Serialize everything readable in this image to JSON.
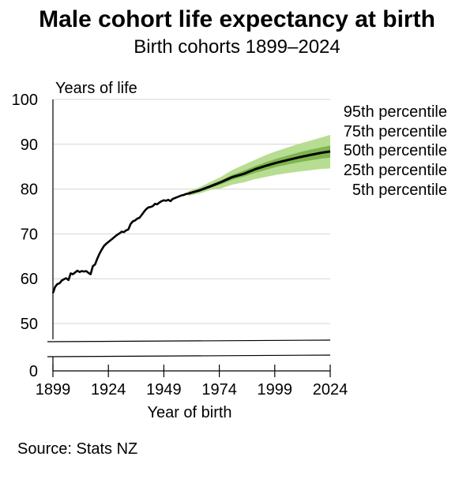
{
  "title": "Male cohort life expectancy at birth",
  "subtitle": "Birth cohorts 1899–2024",
  "source": "Source: Stats NZ",
  "chart_data": {
    "type": "area",
    "ylabel": "Years of life",
    "xlabel": "Year of birth",
    "ylim": [
      0,
      100
    ],
    "y_axis_break": [
      0,
      45
    ],
    "xlim": [
      1899,
      2024
    ],
    "xticks": [
      "1899",
      "1924",
      "1949",
      "1974",
      "1999",
      "2024"
    ],
    "yticks": [
      "100",
      "90",
      "80",
      "70",
      "60",
      "50",
      "0"
    ],
    "grid": "horizontal",
    "legend_position": "right",
    "colors": {
      "band_outer": "#b7dd92",
      "band_inner": "#7fb54f",
      "median": "#000000"
    },
    "legend": [
      "95th percentile",
      "75th percentile",
      "50th percentile",
      "25th percentile",
      "5th percentile"
    ],
    "historical": {
      "name": "50th percentile",
      "x": [
        1899,
        1900,
        1901,
        1902,
        1903,
        1904,
        1905,
        1906,
        1907,
        1908,
        1909,
        1910,
        1911,
        1912,
        1913,
        1914,
        1915,
        1916,
        1917,
        1918,
        1919,
        1920,
        1921,
        1922,
        1923,
        1924,
        1925,
        1926,
        1927,
        1928,
        1929,
        1930,
        1931,
        1932,
        1933,
        1934,
        1935,
        1936,
        1937,
        1938,
        1939,
        1940,
        1941,
        1942,
        1943,
        1944,
        1945,
        1946,
        1947,
        1948,
        1949,
        1950,
        1951,
        1952,
        1953,
        1954,
        1955,
        1956,
        1957,
        1958,
        1959,
        1960
      ],
      "values": [
        56.8,
        58.2,
        58.8,
        59.0,
        59.6,
        59.9,
        60.1,
        59.7,
        61.2,
        61.0,
        61.4,
        61.8,
        61.5,
        61.7,
        61.6,
        61.7,
        61.3,
        61.0,
        62.8,
        63.2,
        64.5,
        65.6,
        66.5,
        67.3,
        67.8,
        68.2,
        68.6,
        69.0,
        69.4,
        69.8,
        70.1,
        70.5,
        70.4,
        70.8,
        71.0,
        72.2,
        72.8,
        73.0,
        73.4,
        73.6,
        74.2,
        74.9,
        75.5,
        75.9,
        76.0,
        76.2,
        76.7,
        76.6,
        77.0,
        77.3,
        77.5,
        77.4,
        77.6,
        77.3,
        77.8,
        78.0,
        78.2,
        78.4,
        78.6,
        78.7,
        78.9,
        79.0
      ]
    },
    "projection": {
      "x": [
        1960,
        1965,
        1970,
        1975,
        1980,
        1985,
        1990,
        1995,
        2000,
        2005,
        2010,
        2015,
        2020,
        2024
      ],
      "p5": [
        78.5,
        79.0,
        79.8,
        80.2,
        81.0,
        81.5,
        82.2,
        82.7,
        83.2,
        83.6,
        83.9,
        84.2,
        84.5,
        84.6
      ],
      "p25": [
        78.8,
        79.4,
        80.3,
        81.1,
        82.1,
        82.8,
        83.6,
        84.3,
        85.0,
        85.5,
        86.0,
        86.4,
        86.8,
        87.0
      ],
      "p50": [
        79.0,
        79.7,
        80.6,
        81.6,
        82.7,
        83.4,
        84.4,
        85.2,
        85.9,
        86.5,
        87.1,
        87.6,
        88.1,
        88.4
      ],
      "p75": [
        79.2,
        80.0,
        81.0,
        82.0,
        83.2,
        84.1,
        85.1,
        86.0,
        86.8,
        87.5,
        88.2,
        88.8,
        89.3,
        89.7
      ],
      "p95": [
        79.5,
        80.4,
        81.6,
        82.8,
        84.3,
        85.4,
        86.5,
        87.6,
        88.5,
        89.3,
        90.1,
        90.8,
        91.5,
        92.1
      ]
    }
  }
}
